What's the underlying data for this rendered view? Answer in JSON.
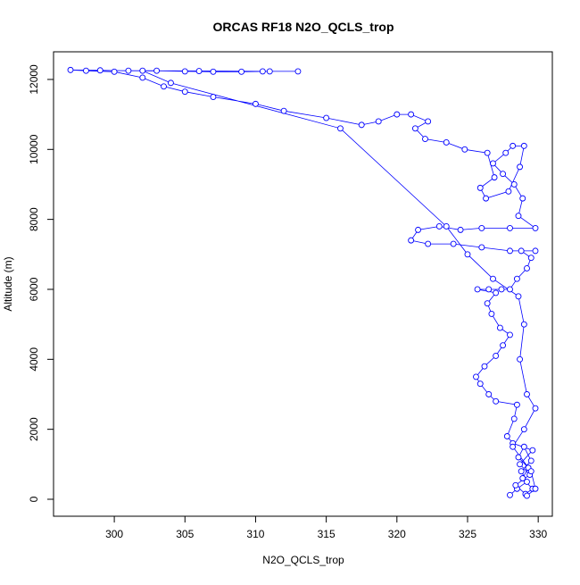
{
  "chart_data": {
    "type": "line",
    "title": "ORCAS RF18 N2O_QCLS_trop",
    "x_label": "N2O_QCLS_trop",
    "y_label": "Altitude (m)",
    "color": "#0000ff",
    "x": [
      328.0,
      328.5,
      329.2,
      328.8,
      329.5,
      329.0,
      328.6,
      329.3,
      328.9,
      329.6,
      329.1,
      328.4,
      329.4,
      328.7,
      329.6,
      328.2,
      327.8,
      328.3,
      328.5,
      327.0,
      326.5,
      325.9,
      325.6,
      326.2,
      327.0,
      327.5,
      328.0,
      327.3,
      326.7,
      326.4,
      327.0,
      325.7,
      326.5,
      327.4,
      328.0,
      328.5,
      329.2,
      329.5,
      328.8,
      329.8,
      328.0,
      326.0,
      324.0,
      322.2,
      321.0,
      321.5,
      323.0,
      324.5,
      326.0,
      328.0,
      329.8,
      328.6,
      328.9,
      328.3,
      327.5,
      326.8,
      327.7,
      328.2,
      329.0,
      328.7,
      327.9,
      326.3,
      325.9,
      326.9,
      326.4,
      324.8,
      323.5,
      322.0,
      321.3,
      322.2,
      321.0,
      320.0,
      318.7,
      317.5,
      315.0,
      312.0,
      310.0,
      307.0,
      305.0,
      303.5,
      302.0,
      300.0,
      298.0,
      296.9,
      299.0,
      301.0,
      303.0,
      305.0,
      307.0,
      309.0,
      311.0,
      313.0,
      310.5,
      306.0,
      302.0,
      304.0,
      316.0,
      323.5,
      325.0,
      326.8,
      328.6,
      329.0,
      328.7,
      329.2,
      329.8,
      329.0,
      328.2,
      329.5,
      329.8,
      329.2
    ],
    "values": [
      120,
      300,
      500,
      800,
      1100,
      1500,
      1200,
      900,
      600,
      300,
      150,
      400,
      700,
      1000,
      1400,
      1600,
      1800,
      2300,
      2700,
      2800,
      3000,
      3300,
      3500,
      3800,
      4100,
      4400,
      4700,
      4900,
      5300,
      5600,
      5900,
      6000,
      6000,
      6000,
      6000,
      6300,
      6600,
      6900,
      7100,
      7100,
      7100,
      7200,
      7300,
      7300,
      7400,
      7700,
      7800,
      7700,
      7750,
      7750,
      7750,
      8100,
      8600,
      9000,
      9300,
      9600,
      9900,
      10100,
      10100,
      9500,
      8800,
      8600,
      8900,
      9200,
      9900,
      10000,
      10200,
      10300,
      10600,
      10800,
      11000,
      11000,
      10800,
      10700,
      10900,
      11100,
      11300,
      11500,
      11650,
      11800,
      12050,
      12220,
      12250,
      12270,
      12260,
      12250,
      12250,
      12230,
      12220,
      12220,
      12230,
      12230,
      12230,
      12240,
      12250,
      11900,
      10600,
      7800,
      7000,
      6300,
      5800,
      5000,
      4000,
      3000,
      2600,
      2000,
      1500,
      800,
      300,
      100
    ],
    "xlim": [
      295.7,
      331.0
    ],
    "ylim": [
      -485,
      12790
    ],
    "xticks": [
      300,
      305,
      310,
      315,
      320,
      325,
      330
    ],
    "yticks": [
      0,
      2000,
      4000,
      6000,
      8000,
      10000,
      12000
    ]
  }
}
